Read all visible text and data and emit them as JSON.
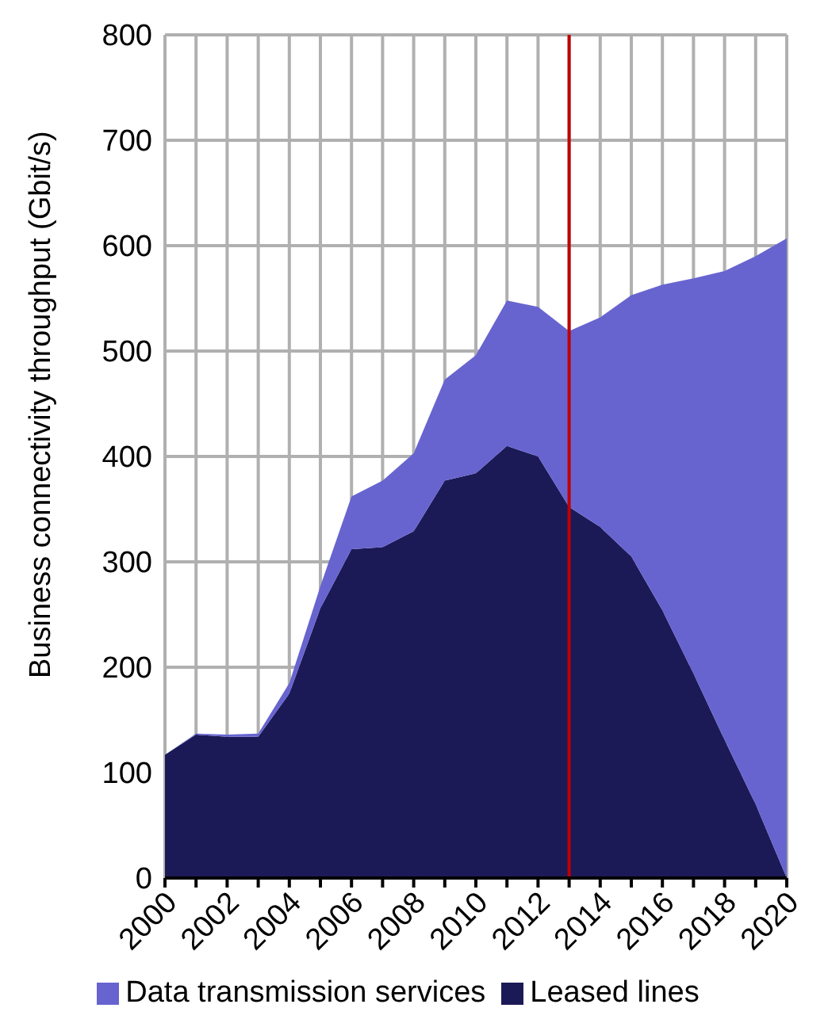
{
  "chart_data": {
    "type": "area",
    "ylabel": "Business connectivity throughput (Gbit/s)",
    "x": [
      2000,
      2001,
      2002,
      2003,
      2004,
      2005,
      2006,
      2007,
      2008,
      2009,
      2010,
      2011,
      2012,
      2013,
      2014,
      2015,
      2016,
      2017,
      2018,
      2019,
      2020
    ],
    "stacked": true,
    "series": [
      {
        "name": "Leased lines",
        "color": "#1b1a57",
        "values": [
          117,
          136,
          134,
          134,
          175,
          256,
          312,
          314,
          329,
          377,
          384,
          410,
          400,
          352,
          333,
          305,
          254,
          194,
          131,
          70,
          0
        ]
      },
      {
        "name": "Data transmission services",
        "color": "#6764d0",
        "values": [
          0,
          1,
          2,
          3,
          10,
          21,
          50,
          63,
          74,
          96,
          112,
          138,
          142,
          167,
          199,
          248,
          309,
          375,
          445,
          520,
          607
        ]
      }
    ],
    "xlim": [
      2000,
      2020
    ],
    "xticks": [
      2000,
      {
        "value": 2001,
        "label": null
      },
      2002,
      {
        "value": 2003,
        "label": null
      },
      2004,
      {
        "value": 2005,
        "label": null
      },
      2006,
      {
        "value": 2007,
        "label": null
      },
      2008,
      {
        "value": 2009,
        "label": null
      },
      2010,
      {
        "value": 2011,
        "label": null
      },
      2012,
      {
        "value": 2013,
        "label": null
      },
      2014,
      {
        "value": 2015,
        "label": null
      },
      2016,
      {
        "value": 2017,
        "label": null
      },
      2018,
      {
        "value": 2019,
        "label": null
      },
      2020
    ],
    "ylim": [
      0,
      800
    ],
    "yticks": [
      0,
      100,
      200,
      300,
      400,
      500,
      600,
      700,
      800
    ],
    "grid": true,
    "legend": "bottom",
    "ref_lines": [
      {
        "axis": "x",
        "value": 2013,
        "color": "#c00000"
      }
    ]
  }
}
